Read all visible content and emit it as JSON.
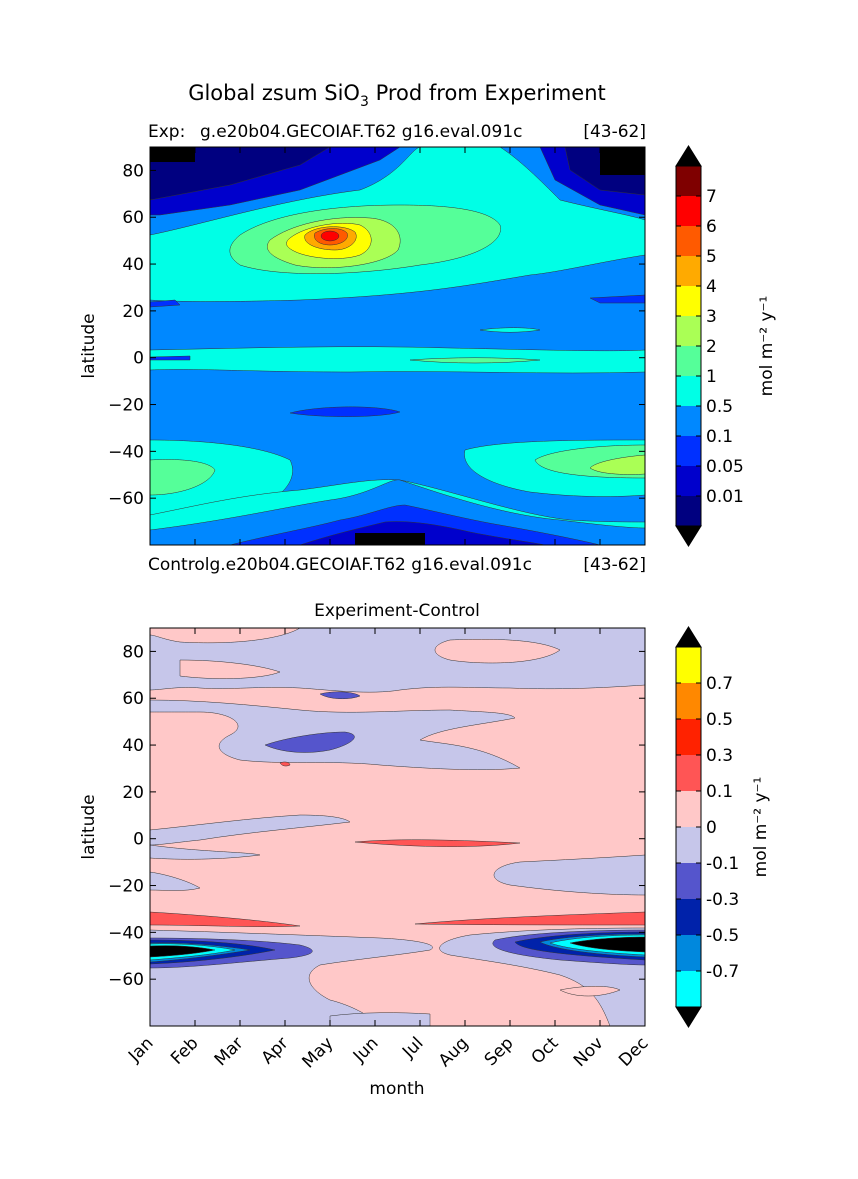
{
  "figure": {
    "title_prefix": "Global zsum SiO",
    "title_sub": "3",
    "title_suffix": " Prod from Experiment"
  },
  "chart_data": [
    {
      "type": "heatmap",
      "panel": "experiment",
      "exp_label": "Exp:",
      "exp_case": "g.e20b04.GECOIAF.T62 g16.eval.091c",
      "exp_years": "[43-62]",
      "bottom_label": "Controlg.e20b04.GECOIAF.T62 g16.eval.091c",
      "bottom_years": "[43-62]",
      "ylabel": "latitude",
      "ylim": [
        -80,
        90
      ],
      "yticks": [
        80,
        60,
        40,
        20,
        0,
        -20,
        -40,
        -60
      ],
      "ytick_labels": [
        "80",
        "60",
        "40",
        "20",
        "0",
        "−20",
        "−40",
        "−60"
      ],
      "xlim": [
        0,
        11
      ],
      "colorbar": {
        "label": "mol m⁻² y⁻¹",
        "levels": [
          "7",
          "6",
          "5",
          "4",
          "3",
          "2",
          "1",
          "0.5",
          "0.1",
          "0.05",
          "0.01"
        ],
        "colors": [
          "#000000",
          "#7f0000",
          "#ff0000",
          "#ff5a00",
          "#ffaa00",
          "#ffff00",
          "#aaff55",
          "#55ff99",
          "#00ffe6",
          "#0088ff",
          "#0030ff",
          "#0000cc",
          "#000080",
          "#000000"
        ]
      },
      "features": [
        {
          "name": "northern-spring-bloom",
          "month_center": 4.2,
          "lat_center": 53,
          "peak_level": "5",
          "note": "max near May, 50-55N"
        },
        {
          "name": "southern-ocean-summer",
          "month_center": 10.7,
          "lat_center": -46,
          "peak_level": "2"
        },
        {
          "name": "equatorial-band",
          "month_range": [
            0,
            11
          ],
          "lat_center": 0,
          "level": "0.5"
        }
      ]
    },
    {
      "type": "heatmap",
      "panel": "difference",
      "title": "Experiment-Control",
      "ylabel": "latitude",
      "xlabel": "month",
      "ylim": [
        -80,
        90
      ],
      "yticks": [
        80,
        60,
        40,
        20,
        0,
        -20,
        -40,
        -60
      ],
      "ytick_labels": [
        "80",
        "60",
        "40",
        "20",
        "0",
        "−20",
        "−40",
        "−60"
      ],
      "xticks": [
        "Jan",
        "Feb",
        "Mar",
        "Apr",
        "May",
        "Jun",
        "Jul",
        "Aug",
        "Sep",
        "Oct",
        "Nov",
        "Dec"
      ],
      "colorbar": {
        "label": "mol m⁻² y⁻¹",
        "levels": [
          "0.7",
          "0.5",
          "0.3",
          "0.1",
          "0",
          "-0.1",
          "-0.3",
          "-0.5",
          "-0.7"
        ],
        "colors": [
          "#000000",
          "#ffff00",
          "#ff8800",
          "#ff2200",
          "#ff5555",
          "#ffc8c8",
          "#c6c6ea",
          "#5555cc",
          "#0022aa",
          "#0088dd",
          "#00ffff",
          "#000000"
        ]
      },
      "features": [
        {
          "name": "southern-ocean-negative",
          "lat_center": -46,
          "months": [
            "Jan",
            "Feb",
            "Oct",
            "Nov",
            "Dec"
          ],
          "min_level": "-0.7"
        },
        {
          "name": "southern-ocean-positive-band",
          "lat_center": -35,
          "level": "0.3"
        },
        {
          "name": "equatorial-positive-streak",
          "lat_center": 0,
          "months": [
            "Jun",
            "Jul",
            "Aug",
            "Sep"
          ],
          "level": "0.3"
        }
      ]
    }
  ]
}
